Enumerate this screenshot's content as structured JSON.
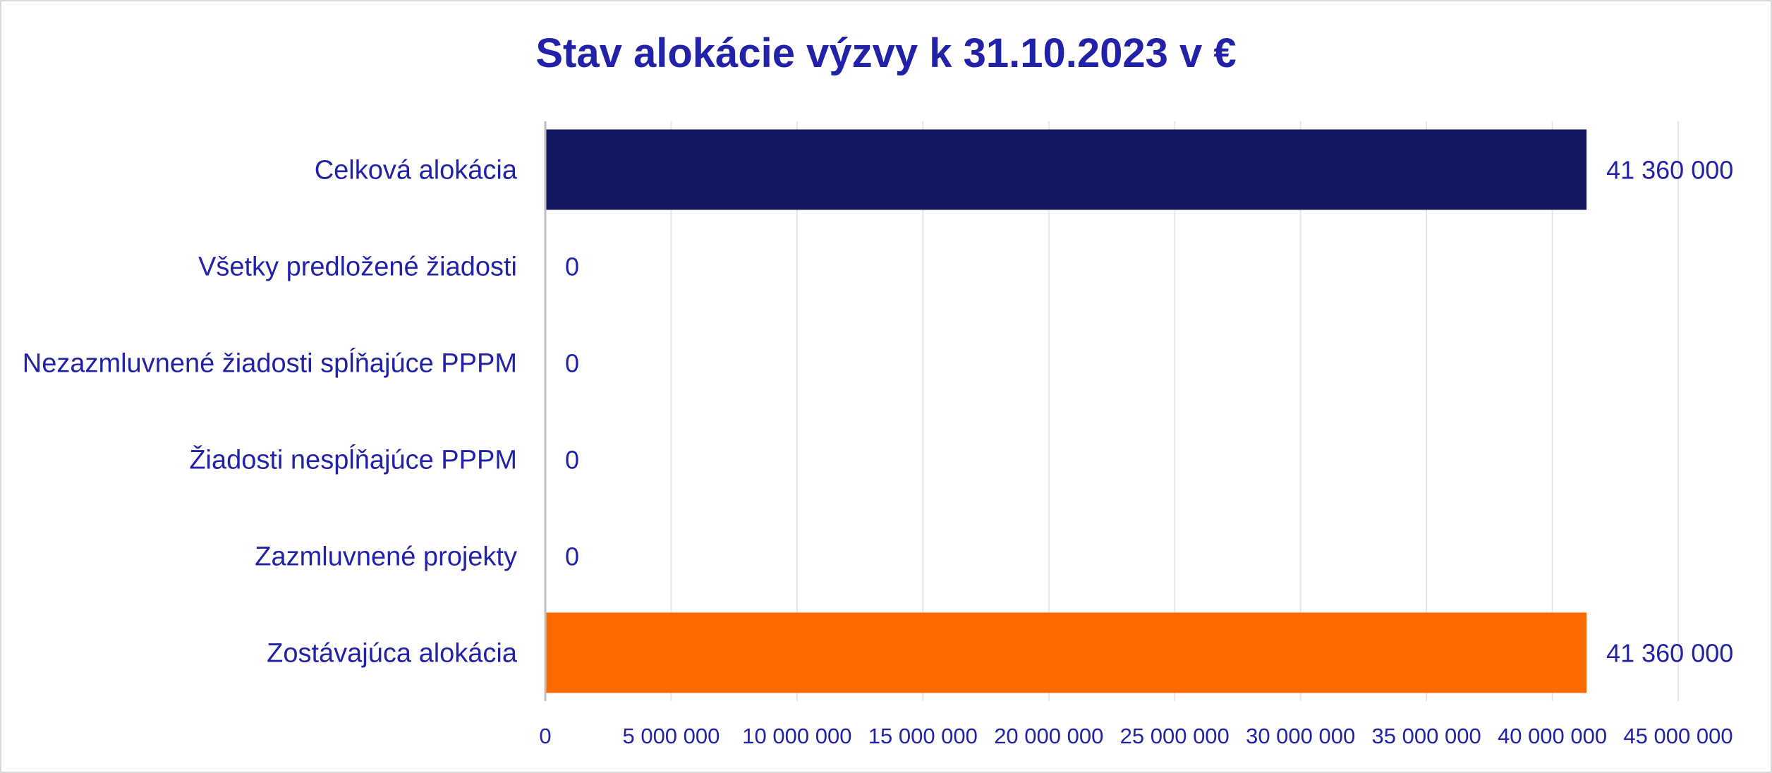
{
  "chart_data": {
    "type": "bar",
    "orientation": "horizontal",
    "title": "Stav alokácie výzvy k 31.10.2023 v €",
    "xlabel": "",
    "ylabel": "",
    "categories": [
      "Celková alokácia",
      "Všetky predložené žiadosti",
      "Nezazmluvnené žiadosti spĺňajúce PPPM",
      "Žiadosti nespĺňajúce PPPM",
      "Zazmluvnené projekty",
      "Zostávajúca alokácia"
    ],
    "values": [
      41360000,
      0,
      0,
      0,
      0,
      41360000
    ],
    "value_labels": [
      "41 360 000",
      "0",
      "0",
      "0",
      "0",
      "41 360 000"
    ],
    "bar_colors": [
      "#131660",
      "#131660",
      "#131660",
      "#131660",
      "#131660",
      "#ff6a00"
    ],
    "xlim": [
      0,
      45000000
    ],
    "x_ticks": [
      0,
      5000000,
      10000000,
      15000000,
      20000000,
      25000000,
      30000000,
      35000000,
      40000000,
      45000000
    ],
    "x_tick_labels": [
      "0",
      "5 000 000",
      "10 000 000",
      "15 000 000",
      "20 000 000",
      "25 000 000",
      "30 000 000",
      "35 000 000",
      "40 000 000",
      "45 000 000"
    ],
    "grid": "vertical",
    "legend": "none",
    "text_color": "#2222a8",
    "grid_color": "#e6e6e6",
    "axis_color": "#bfbfbf"
  }
}
